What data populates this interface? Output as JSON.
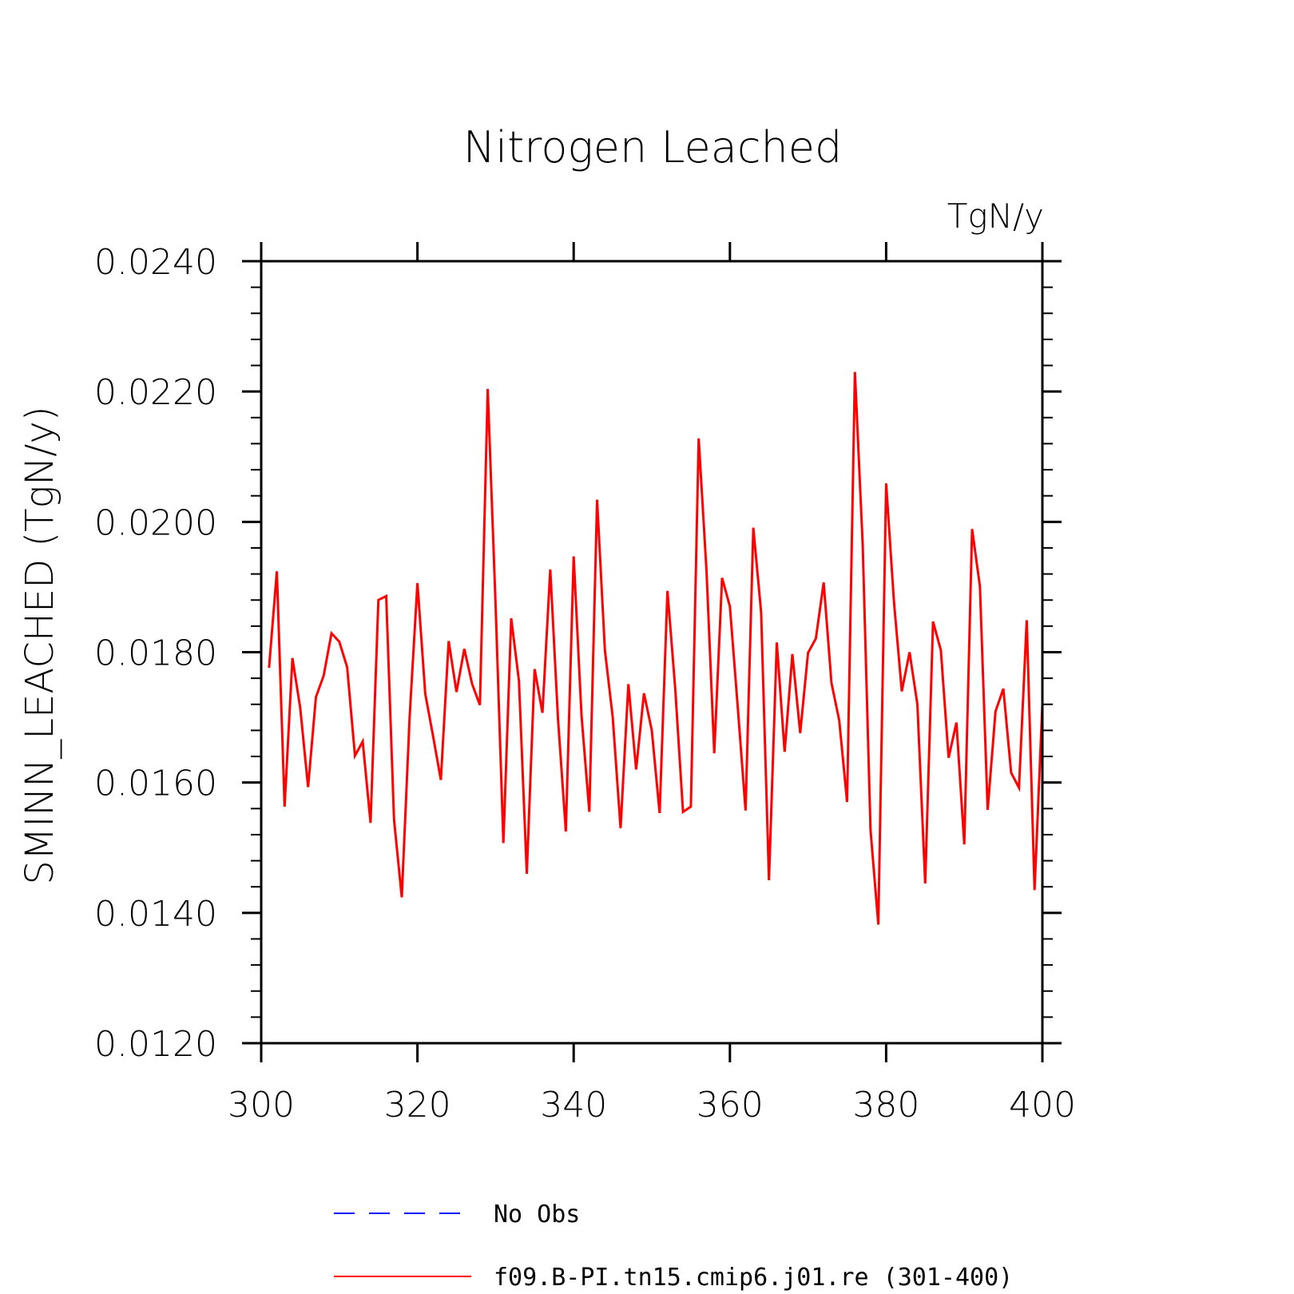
{
  "chart_data": {
    "type": "line",
    "title": "Nitrogen Leached",
    "units_label": "TgN/y",
    "ylabel": "SMINN_LEACHED   (TgN/y)",
    "xlabel": "",
    "xlim": [
      300,
      400
    ],
    "ylim": [
      0.012,
      0.024
    ],
    "x_ticks": [
      300,
      320,
      340,
      360,
      380,
      400
    ],
    "x_tick_labels": [
      "300",
      "320",
      "340",
      "360",
      "380",
      "400"
    ],
    "y_ticks": [
      0.012,
      0.014,
      0.016,
      0.018,
      0.02,
      0.022,
      0.024
    ],
    "y_tick_labels": [
      "0.0120",
      "0.0140",
      "0.0160",
      "0.0180",
      "0.0200",
      "0.0220",
      "0.0240"
    ],
    "grid": false,
    "legend": [
      {
        "label": "No Obs",
        "color": "#0000ff",
        "style": "dashed"
      },
      {
        "label": "f09.B-PI.tn15.cmip6.j01.re (301-400)",
        "color": "#ff0000",
        "style": "solid"
      }
    ],
    "series": [
      {
        "name": "f09.B-PI.tn15.cmip6.j01.re (301-400)",
        "color": "#ff0000",
        "x": [
          301,
          302,
          303,
          304,
          305,
          306,
          307,
          308,
          309,
          310,
          311,
          312,
          313,
          314,
          315,
          316,
          317,
          318,
          319,
          320,
          321,
          322,
          323,
          324,
          325,
          326,
          327,
          328,
          329,
          330,
          331,
          332,
          333,
          334,
          335,
          336,
          337,
          338,
          339,
          340,
          341,
          342,
          343,
          344,
          345,
          346,
          347,
          348,
          349,
          350,
          351,
          352,
          353,
          354,
          355,
          356,
          357,
          358,
          359,
          360,
          361,
          362,
          363,
          364,
          365,
          366,
          367,
          368,
          369,
          370,
          371,
          372,
          373,
          374,
          375,
          376,
          377,
          378,
          379,
          380,
          381,
          382,
          383,
          384,
          385,
          386,
          387,
          388,
          389,
          390,
          391,
          392,
          393,
          394,
          395,
          396,
          397,
          398,
          399,
          400
        ],
        "values": [
          0.01776,
          0.01924,
          0.01563,
          0.01791,
          0.01714,
          0.01593,
          0.01731,
          0.01764,
          0.01829,
          0.01816,
          0.01777,
          0.01641,
          0.01663,
          0.01538,
          0.0188,
          0.01886,
          0.01543,
          0.01424,
          0.017,
          0.01906,
          0.01736,
          0.01671,
          0.01604,
          0.01817,
          0.01739,
          0.01805,
          0.01751,
          0.01719,
          0.02204,
          0.01874,
          0.01507,
          0.01852,
          0.01756,
          0.0146,
          0.01774,
          0.01707,
          0.01927,
          0.01697,
          0.01525,
          0.01947,
          0.01703,
          0.01555,
          0.02034,
          0.01803,
          0.017,
          0.0153,
          0.01751,
          0.0162,
          0.01737,
          0.0168,
          0.01553,
          0.01894,
          0.01745,
          0.01555,
          0.01563,
          0.02128,
          0.01925,
          0.01645,
          0.01914,
          0.0187,
          0.01716,
          0.01557,
          0.01991,
          0.01861,
          0.0145,
          0.01815,
          0.01647,
          0.01797,
          0.01676,
          0.01799,
          0.01821,
          0.01907,
          0.01753,
          0.01695,
          0.0157,
          0.0223,
          0.01963,
          0.01528,
          0.01382,
          0.02059,
          0.01877,
          0.0174,
          0.018,
          0.0172,
          0.01445,
          0.01847,
          0.01803,
          0.01638,
          0.01692,
          0.01505,
          0.01989,
          0.01901,
          0.01558,
          0.01709,
          0.01744,
          0.01615,
          0.01592,
          0.01849,
          0.01435,
          0.0172
        ]
      }
    ]
  }
}
